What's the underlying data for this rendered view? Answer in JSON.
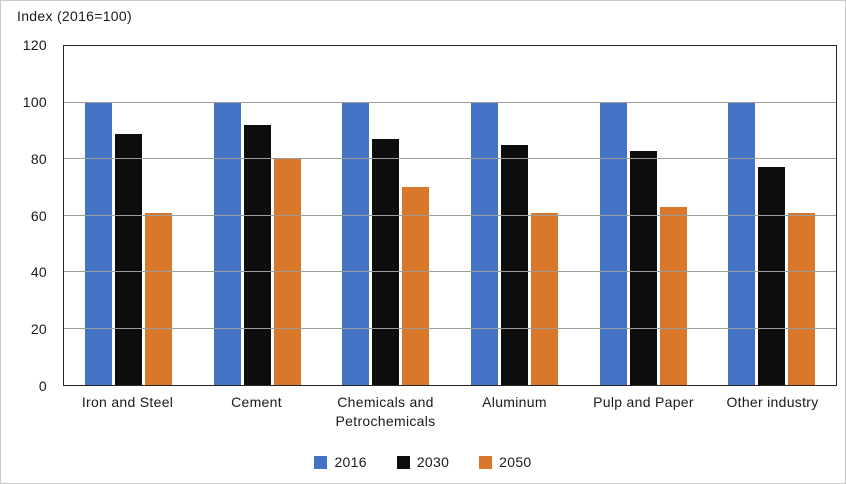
{
  "chart_data": {
    "type": "bar",
    "title": "Index (2016=100)",
    "xlabel": "",
    "ylabel": "Index (2016=100)",
    "categories": [
      "Iron and Steel",
      "Cement",
      "Chemicals and Petrochemicals",
      "Aluminum",
      "Pulp and Paper",
      "Other industry"
    ],
    "series": [
      {
        "name": "2016",
        "color": "#4472C4",
        "values": [
          100,
          100,
          100,
          100,
          100,
          100
        ]
      },
      {
        "name": "2030",
        "color": "#0d0d0d",
        "values": [
          89,
          92,
          87,
          85,
          83,
          77
        ]
      },
      {
        "name": "2050",
        "color": "#D9772B",
        "values": [
          61,
          80,
          70,
          61,
          63,
          61
        ]
      }
    ],
    "ylim": [
      0,
      120
    ],
    "ytick_step": 20,
    "ytick_labels": [
      "0",
      "20",
      "40",
      "60",
      "80",
      "100",
      "120"
    ],
    "grid": true,
    "legend_position": "bottom"
  }
}
